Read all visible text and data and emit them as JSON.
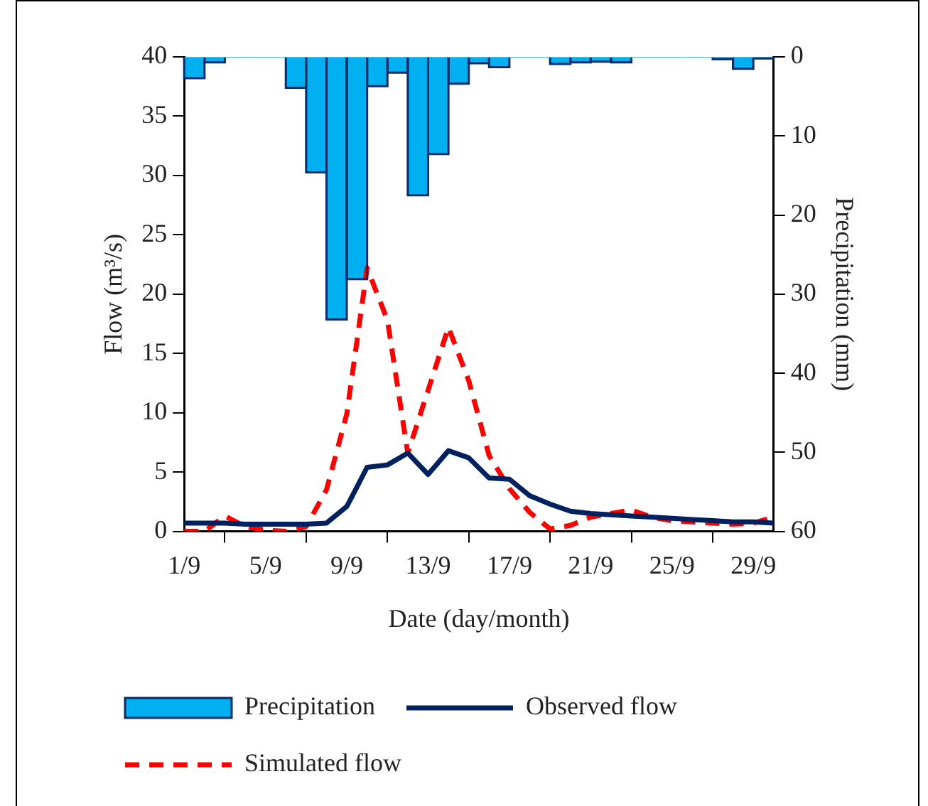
{
  "chart_data": {
    "type": "line",
    "xlabel": "Date (day/month)",
    "ylabel": "Flow (m³/s)",
    "y2label": "Precipitation (mm)",
    "x": [
      "--09-01",
      "--09-02",
      "--09-03",
      "--09-04",
      "--09-05",
      "--09-06",
      "--09-07",
      "--09-08",
      "--09-09",
      "--09-10",
      "--09-11",
      "--09-12",
      "--09-13",
      "--09-14",
      "--09-15",
      "--09-16",
      "--09-17",
      "--09-18",
      "--09-19",
      "--09-20",
      "--09-21",
      "--09-22",
      "--09-23",
      "--09-24",
      "--09-25",
      "--09-26",
      "--09-27",
      "--09-28",
      "--09-29",
      "--09-30"
    ],
    "xlim": [
      "--09-01",
      "--09-30"
    ],
    "xticks": [
      {
        "value": "--09-01",
        "label": "1/9"
      },
      {
        "value": "--09-05",
        "label": "5/9"
      },
      {
        "value": "--09-09",
        "label": "9/9"
      },
      {
        "value": "--09-13",
        "label": "13/9"
      },
      {
        "value": "--09-17",
        "label": "17/9"
      },
      {
        "value": "--09-21",
        "label": "21/9"
      },
      {
        "value": "--09-25",
        "label": "25/9"
      },
      {
        "value": "--09-29",
        "label": "29/9"
      }
    ],
    "ylim": [
      0,
      40
    ],
    "yticks": [
      0,
      5,
      10,
      15,
      20,
      25,
      30,
      35,
      40
    ],
    "y2lim": [
      60,
      0
    ],
    "y2ticks": [
      0,
      10,
      20,
      30,
      40,
      50,
      60
    ],
    "grid": false,
    "legend": "bottom",
    "marker": "none",
    "series": [
      {
        "name": "Precipitation",
        "type": "bar",
        "axis": "y2",
        "color": "#00b0f0",
        "x": [
          "--09-01T12:00",
          "--09-02T12:00",
          "--09-03T12:00",
          "--09-04T12:00",
          "--09-05T12:00",
          "--09-06T12:00",
          "--09-07T12:00",
          "--09-08T12:00",
          "--09-09T12:00",
          "--09-10T12:00",
          "--09-11T12:00",
          "--09-12T12:00",
          "--09-13T12:00",
          "--09-14T12:00",
          "--09-15T12:00",
          "--09-16T12:00",
          "--09-17T12:00",
          "--09-18T12:00",
          "--09-19T12:00",
          "--09-20T12:00",
          "--09-21T12:00",
          "--09-22T12:00",
          "--09-23T12:00",
          "--09-24T12:00",
          "--09-25T12:00",
          "--09-26T12:00",
          "--09-27T12:00",
          "--09-28T12:00",
          "--09-29T12:00"
        ],
        "values": [
          2.7,
          0.7,
          0,
          0,
          0,
          3.9,
          14.6,
          33.2,
          28.1,
          3.7,
          2.0,
          17.5,
          12.3,
          3.4,
          0.8,
          1.3,
          0,
          0,
          0.9,
          0.7,
          0.6,
          0.7,
          0,
          0,
          0,
          0,
          0.3,
          1.5,
          0.2
        ]
      },
      {
        "name": "Observed flow",
        "color": "#002060",
        "line_style": "solid",
        "values": [
          0.7,
          0.7,
          0.7,
          0.6,
          0.6,
          0.6,
          0.6,
          0.7,
          2.1,
          5.4,
          5.6,
          6.6,
          4.8,
          6.8,
          6.2,
          4.5,
          4.4,
          3.0,
          2.3,
          1.7,
          1.5,
          1.4,
          1.3,
          1.2,
          1.1,
          1.0,
          0.9,
          0.8,
          0.8,
          0.7
        ]
      },
      {
        "name": "Simulated flow",
        "color": "#ff0000",
        "line_style": "dashed",
        "values": [
          0,
          0,
          1.3,
          0.4,
          0.1,
          0,
          0.4,
          3.5,
          9.9,
          22.2,
          17.8,
          6.6,
          11.9,
          17.2,
          12.7,
          6.4,
          3.6,
          1.6,
          0.2,
          0.5,
          1.2,
          1.5,
          1.8,
          1.2,
          0.9,
          0.8,
          0.7,
          0.6,
          0.7,
          1.2
        ]
      }
    ]
  }
}
